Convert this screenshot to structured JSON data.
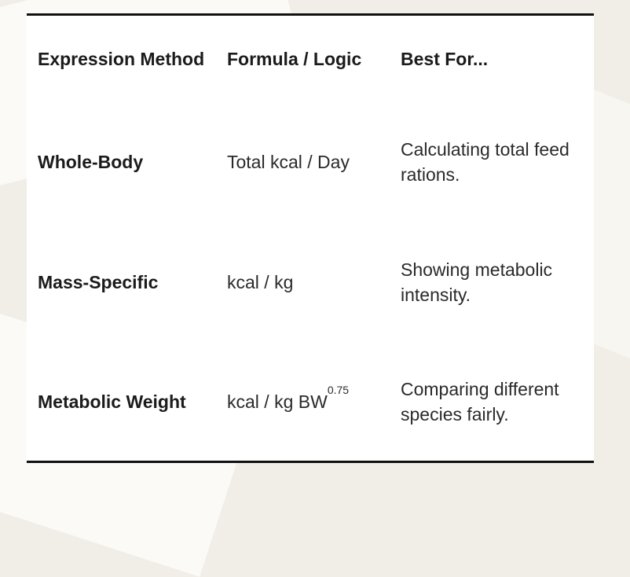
{
  "table": {
    "headers": [
      "Expression Method",
      "Formula / Logic",
      "Best For..."
    ],
    "rows": [
      {
        "method": "Whole-Body",
        "formula": "Total kcal / Day",
        "best_for": "Calculating total feed rations."
      },
      {
        "method": "Mass-Specific",
        "formula": "kcal / kg",
        "best_for": "Showing metabolic intensity."
      },
      {
        "method": "Metabolic Weight",
        "formula_base": "kcal / kg BW",
        "formula_exp": "0.75",
        "best_for": "Comparing different species fairly."
      }
    ]
  }
}
